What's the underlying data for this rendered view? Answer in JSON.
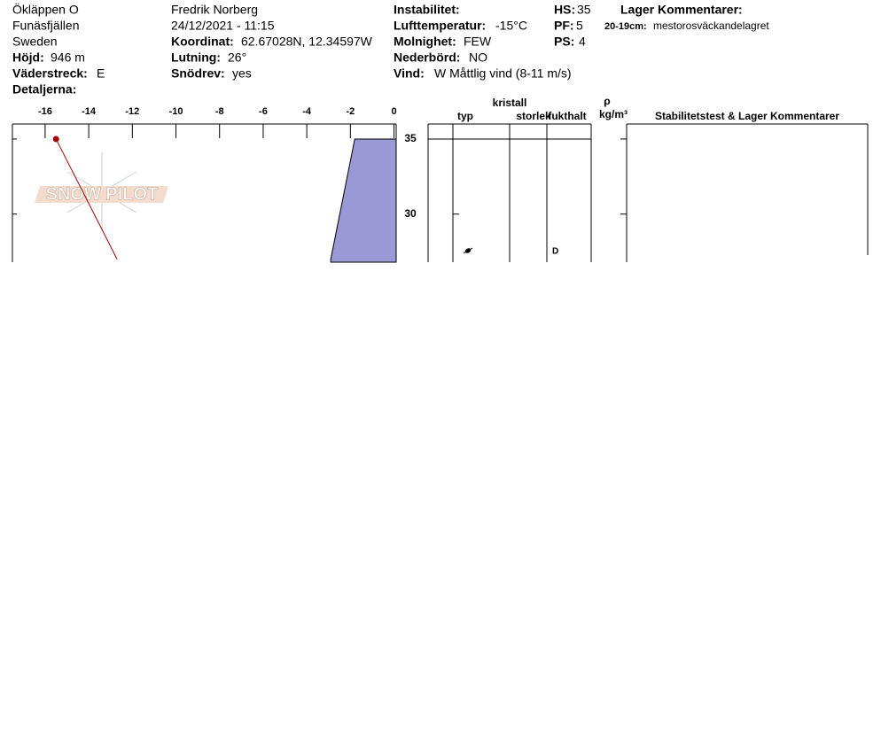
{
  "header": {
    "site": "Ökläppen O",
    "range": "Funäsfjällen",
    "country": "Sweden",
    "observer": "Fredrik Norberg",
    "datetime": "24/12/2021 - 11:15",
    "elevation": {
      "label": "Höjd:",
      "value": "946 m"
    },
    "aspect": {
      "label": "Väderstreck:",
      "value": "E"
    },
    "details": {
      "label": "Detaljerna:"
    },
    "coordinates": {
      "label": "Koordinat:",
      "value": "62.67028N, 12.34597W"
    },
    "slope": {
      "label": "Lutning:",
      "value": "26°"
    },
    "wind_loading": {
      "label": "Snödrev:",
      "value": "yes"
    },
    "instability": {
      "label": "Instabilitet:"
    },
    "air_temp": {
      "label": "Lufttemperatur:",
      "value": "-15°C"
    },
    "sky": {
      "label": "Molnighet:",
      "value": "FEW"
    },
    "precip": {
      "label": "Nederbörd:",
      "value": "NO"
    },
    "wind": {
      "label": "Vind:",
      "value": "W Måttlig vind (8-11 m/s)"
    },
    "hs": {
      "label": "HS:",
      "value": "35"
    },
    "pf": {
      "label": "PF:",
      "value": "5"
    },
    "ps": {
      "label": "PS:",
      "value": "4"
    },
    "layer_comments": {
      "title": "Lager Kommentarer:",
      "items": [
        {
          "depth": "20-19cm:",
          "text": "mestorosväckandelagret"
        }
      ]
    }
  },
  "chart_data": {
    "type": "profile",
    "watermark": "SNOW PILOT",
    "xlim": [
      -17.5,
      0.1
    ],
    "xticks": [
      -16,
      -14,
      -12,
      -10,
      -8,
      -6,
      -4,
      -2,
      0
    ],
    "ylim": [
      26.8,
      36
    ],
    "yticks": [
      30,
      35
    ],
    "temperature": {
      "heights": [
        35,
        27
      ],
      "values": [
        -15.5,
        -12.7
      ],
      "color": "#a00000"
    },
    "hardness": {
      "heights": [
        35,
        27
      ],
      "values": [
        -1.8,
        -2.9
      ],
      "color": "#9999d6"
    }
  },
  "table": {
    "headers": {
      "crystal": "kristall",
      "type": "typ",
      "size": "storlek",
      "moisture": "fukthalt",
      "rho": "ρ",
      "density": "kg/m³",
      "comments": "Stabilitetstest & Lager Kommentarer"
    },
    "layers": [
      {
        "moisture": "D"
      }
    ]
  }
}
